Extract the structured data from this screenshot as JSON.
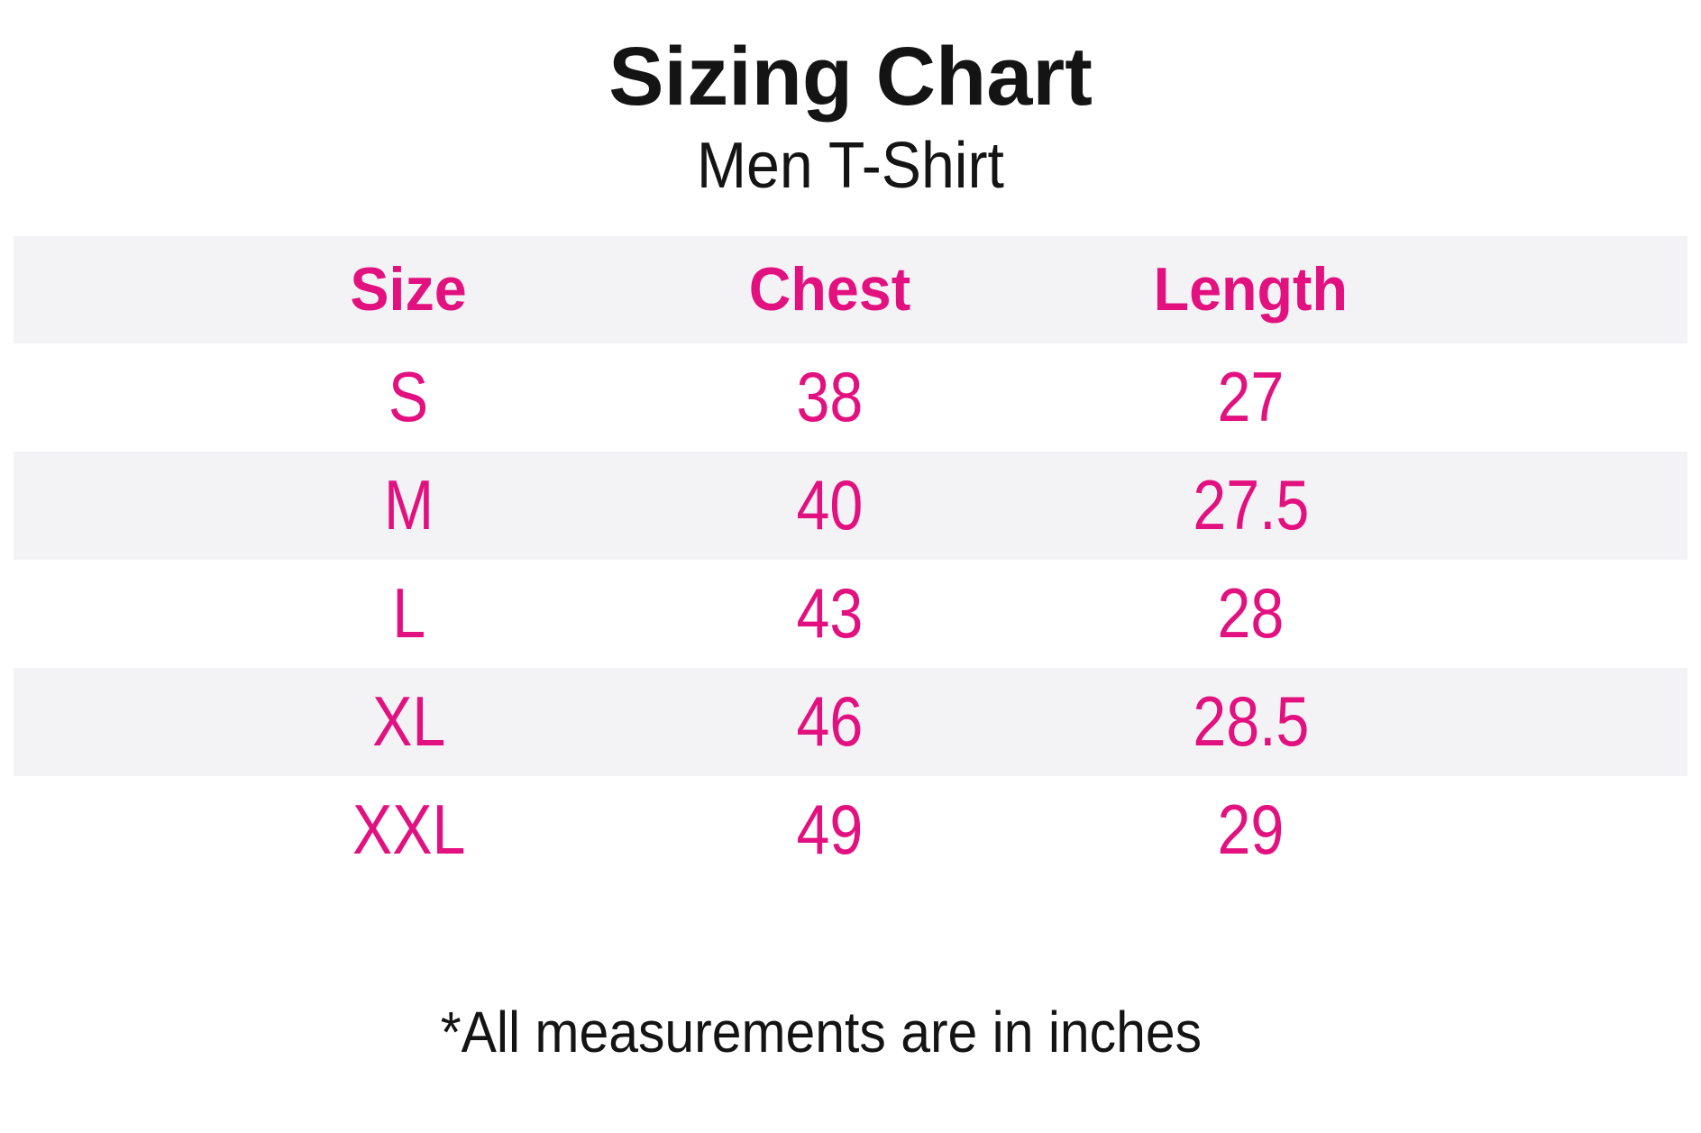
{
  "page": {
    "title": "Sizing Chart",
    "subtitle": "Men T-Shirt",
    "footnote": "*All measurements are in inches"
  },
  "colors": {
    "accent_pink": "#e31180",
    "stripe_gray": "#f3f3f5",
    "text_black": "#141414",
    "background": "#ffffff"
  },
  "chart_data": {
    "type": "table",
    "title": "Sizing Chart",
    "subtitle": "Men T-Shirt",
    "columns": [
      "Size",
      "Chest",
      "Length"
    ],
    "rows": [
      [
        "S",
        "38",
        "27"
      ],
      [
        "M",
        "40",
        "27.5"
      ],
      [
        "L",
        "43",
        "28"
      ],
      [
        "XL",
        "46",
        "28.5"
      ],
      [
        "XXL",
        "49",
        "29"
      ]
    ],
    "units": "inches",
    "footnote": "*All measurements are in inches",
    "layout_hints": {
      "striped_rows": [
        "header",
        "M",
        "XL"
      ],
      "column_alignment": "center",
      "grid": "off",
      "borders": "none"
    }
  }
}
